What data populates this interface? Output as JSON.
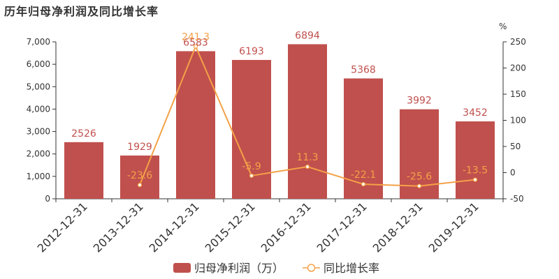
{
  "chart_data": {
    "type": "bar",
    "title": "历年归母净利润及同比增长率",
    "categories": [
      "2012-12-31",
      "2013-12-31",
      "2014-12-31",
      "2015-12-31",
      "2016-12-31",
      "2017-12-31",
      "2018-12-31",
      "2019-12-31"
    ],
    "series": [
      {
        "name": "归母净利润（万）",
        "type": "bar",
        "axis": "left",
        "color": "#c0504d",
        "values": [
          2526,
          1929,
          6583,
          6193,
          6894,
          5368,
          3992,
          3452
        ],
        "labels": [
          "2526",
          "1929",
          "6583",
          "6193",
          "6894",
          "5368",
          "3992",
          "3452"
        ]
      },
      {
        "name": "同比增长率",
        "type": "line",
        "axis": "right",
        "color": "#f4a148",
        "values": [
          null,
          -23.6,
          241.3,
          -5.9,
          11.3,
          -22.1,
          -25.6,
          -13.5
        ],
        "labels": [
          "",
          "-23.6",
          "241.3",
          "-5.9",
          "11.3",
          "-22.1",
          "-25.6",
          "-13.5"
        ]
      }
    ],
    "y_left": {
      "min": 0,
      "max": 7000,
      "ticks": [
        "0",
        "1,000",
        "2,000",
        "3,000",
        "4,000",
        "5,000",
        "6,000",
        "7,000"
      ]
    },
    "y_right": {
      "min": -50,
      "max": 250,
      "unit": "%",
      "ticks": [
        "-50",
        "0",
        "50",
        "100",
        "150",
        "200",
        "250"
      ]
    },
    "legend_position": "bottom-center",
    "grid": false
  }
}
